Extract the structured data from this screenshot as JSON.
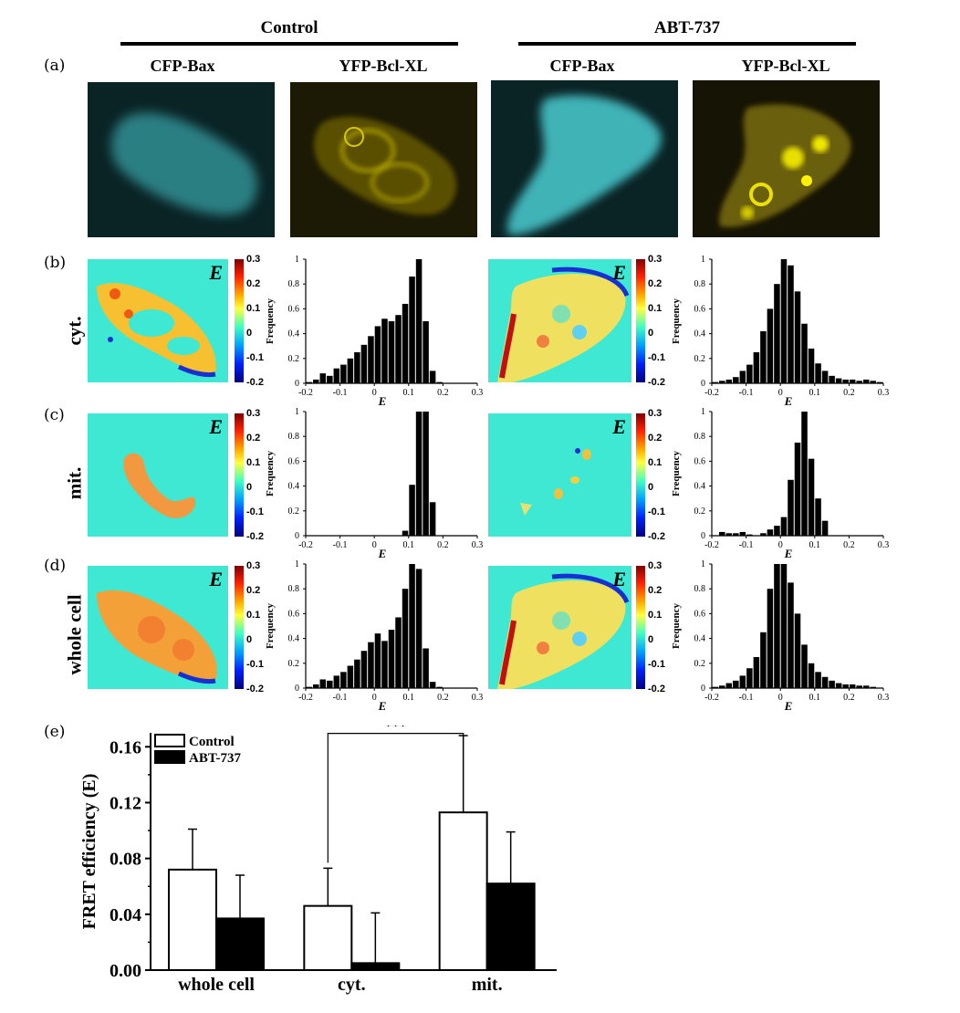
{
  "figure": {
    "panel_letters": [
      "(a)",
      "(b)",
      "(c)",
      "(d)",
      "(e)"
    ],
    "groups": {
      "control": "Control",
      "abt": "ABT-737"
    },
    "column_titles": [
      "CFP-Bax",
      "YFP-Bcl-XL",
      "CFP-Bax",
      "YFP-Bcl-XL"
    ],
    "row_labels": [
      "cyt.",
      "mit.",
      "whole cell"
    ],
    "map_label": "E",
    "colorbar_ticks": [
      "0.3",
      "0.2",
      "0.1",
      "0",
      "-0.1",
      "-0.2"
    ],
    "hist_ylabel": "Frequency",
    "hist_xlabel": "E",
    "colors": {
      "cyan_cell": "#2fb6b8",
      "yellow_cell": "#d8c400",
      "map_bg": "#3fe8d2"
    }
  },
  "chart_data": [
    {
      "type": "bar",
      "panel": "b-control-hist",
      "xlabel": "E",
      "ylabel": "Frequency",
      "xlim": [
        -0.2,
        0.3
      ],
      "ylim": [
        0,
        1
      ],
      "xticks": [
        "-0.2",
        "-0.1",
        "0",
        "0.1",
        "0.2",
        "0.3"
      ],
      "yticks": [
        "0",
        "0.2",
        "0.4",
        "0.6",
        "0.8",
        "1"
      ],
      "bin_start": -0.2,
      "bin_width": 0.02,
      "values": [
        0.01,
        0.03,
        0.08,
        0.06,
        0.12,
        0.15,
        0.2,
        0.25,
        0.31,
        0.38,
        0.46,
        0.52,
        0.5,
        0.55,
        0.64,
        0.86,
        1.0,
        0.5,
        0.1,
        0.01,
        0.0,
        0.0,
        0.0,
        0.0,
        0.0
      ]
    },
    {
      "type": "bar",
      "panel": "b-abt-hist",
      "xlabel": "E",
      "ylabel": "Frequency",
      "xlim": [
        -0.2,
        0.3
      ],
      "ylim": [
        0,
        1
      ],
      "xticks": [
        "-0.2",
        "-0.1",
        "0",
        "0.1",
        "0.2",
        "0.3"
      ],
      "yticks": [
        "0",
        "0.2",
        "0.4",
        "0.6",
        "0.8",
        "1"
      ],
      "bin_start": -0.2,
      "bin_width": 0.02,
      "values": [
        0.01,
        0.02,
        0.03,
        0.05,
        0.1,
        0.15,
        0.25,
        0.42,
        0.6,
        0.8,
        1.0,
        0.95,
        0.74,
        0.48,
        0.28,
        0.16,
        0.1,
        0.06,
        0.04,
        0.03,
        0.03,
        0.02,
        0.03,
        0.02,
        0.01
      ]
    },
    {
      "type": "bar",
      "panel": "c-control-hist",
      "xlabel": "E",
      "ylabel": "Frequency",
      "xlim": [
        -0.2,
        0.3
      ],
      "ylim": [
        0,
        1
      ],
      "xticks": [
        "-0.2",
        "-0.1",
        "0",
        "0.1",
        "0.2",
        "0.3"
      ],
      "yticks": [
        "0",
        "0.2",
        "0.4",
        "0.6",
        "0.8",
        "1"
      ],
      "bin_start": -0.2,
      "bin_width": 0.02,
      "values": [
        0,
        0,
        0,
        0,
        0,
        0,
        0,
        0,
        0,
        0,
        0,
        0,
        0,
        0,
        0.04,
        0.41,
        1.0,
        1.0,
        0.27,
        0,
        0,
        0,
        0,
        0,
        0
      ]
    },
    {
      "type": "bar",
      "panel": "c-abt-hist",
      "xlabel": "E",
      "ylabel": "Frequency",
      "xlim": [
        -0.2,
        0.3
      ],
      "ylim": [
        0,
        1
      ],
      "xticks": [
        "-0.2",
        "-0.1",
        "0",
        "0.1",
        "0.2",
        "0.3"
      ],
      "yticks": [
        "0",
        "0.2",
        "0.4",
        "0.6",
        "0.8",
        "1"
      ],
      "bin_start": -0.2,
      "bin_width": 0.02,
      "values": [
        0,
        0.03,
        0.02,
        0.02,
        0.03,
        0.01,
        0,
        0.02,
        0.05,
        0.08,
        0.15,
        0.45,
        0.75,
        1.0,
        0.62,
        0.3,
        0.12,
        0,
        0,
        0,
        0,
        0,
        0,
        0,
        0
      ]
    },
    {
      "type": "bar",
      "panel": "d-control-hist",
      "xlabel": "E",
      "ylabel": "Frequency",
      "xlim": [
        -0.2,
        0.3
      ],
      "ylim": [
        0,
        1
      ],
      "xticks": [
        "-0.2",
        "-0.1",
        "0",
        "0.1",
        "0.2",
        "0.3"
      ],
      "yticks": [
        "0",
        "0.2",
        "0.4",
        "0.6",
        "0.8",
        "1"
      ],
      "bin_start": -0.2,
      "bin_width": 0.02,
      "values": [
        0.01,
        0.03,
        0.07,
        0.06,
        0.1,
        0.13,
        0.18,
        0.23,
        0.3,
        0.37,
        0.44,
        0.38,
        0.47,
        0.57,
        0.8,
        1.0,
        0.96,
        0.32,
        0.05,
        0.01,
        0.0,
        0.0,
        0.0,
        0.0,
        0.0
      ]
    },
    {
      "type": "bar",
      "panel": "d-abt-hist",
      "xlabel": "E",
      "ylabel": "Frequency",
      "xlim": [
        -0.2,
        0.3
      ],
      "ylim": [
        0,
        1
      ],
      "xticks": [
        "-0.2",
        "-0.1",
        "0",
        "0.1",
        "0.2",
        "0.3"
      ],
      "yticks": [
        "0",
        "0.2",
        "0.4",
        "0.6",
        "0.8",
        "1"
      ],
      "bin_start": -0.2,
      "bin_width": 0.02,
      "values": [
        0.01,
        0.02,
        0.04,
        0.06,
        0.1,
        0.16,
        0.25,
        0.45,
        0.8,
        1.0,
        1.0,
        0.85,
        0.6,
        0.35,
        0.2,
        0.13,
        0.09,
        0.06,
        0.04,
        0.03,
        0.03,
        0.02,
        0.02,
        0.01,
        0.0
      ]
    },
    {
      "type": "bar",
      "panel": "e",
      "ylabel": "FRET efficiency (E)",
      "categories": [
        "whole cell",
        "cyt.",
        "mit."
      ],
      "ylim": [
        0,
        0.17
      ],
      "yticks": [
        "0.00",
        "0.04",
        "0.08",
        "0.12",
        "0.16"
      ],
      "legend_position": "top-left",
      "series": [
        {
          "name": "Control",
          "values": [
            0.072,
            0.046,
            0.113
          ],
          "errors": [
            0.029,
            0.027,
            0.055
          ],
          "color": "#ffffff"
        },
        {
          "name": "ABT-737",
          "values": [
            0.037,
            0.005,
            0.062
          ],
          "errors": [
            0.031,
            0.036,
            0.037
          ],
          "color": "#000000"
        }
      ],
      "annotation": "***"
    }
  ]
}
